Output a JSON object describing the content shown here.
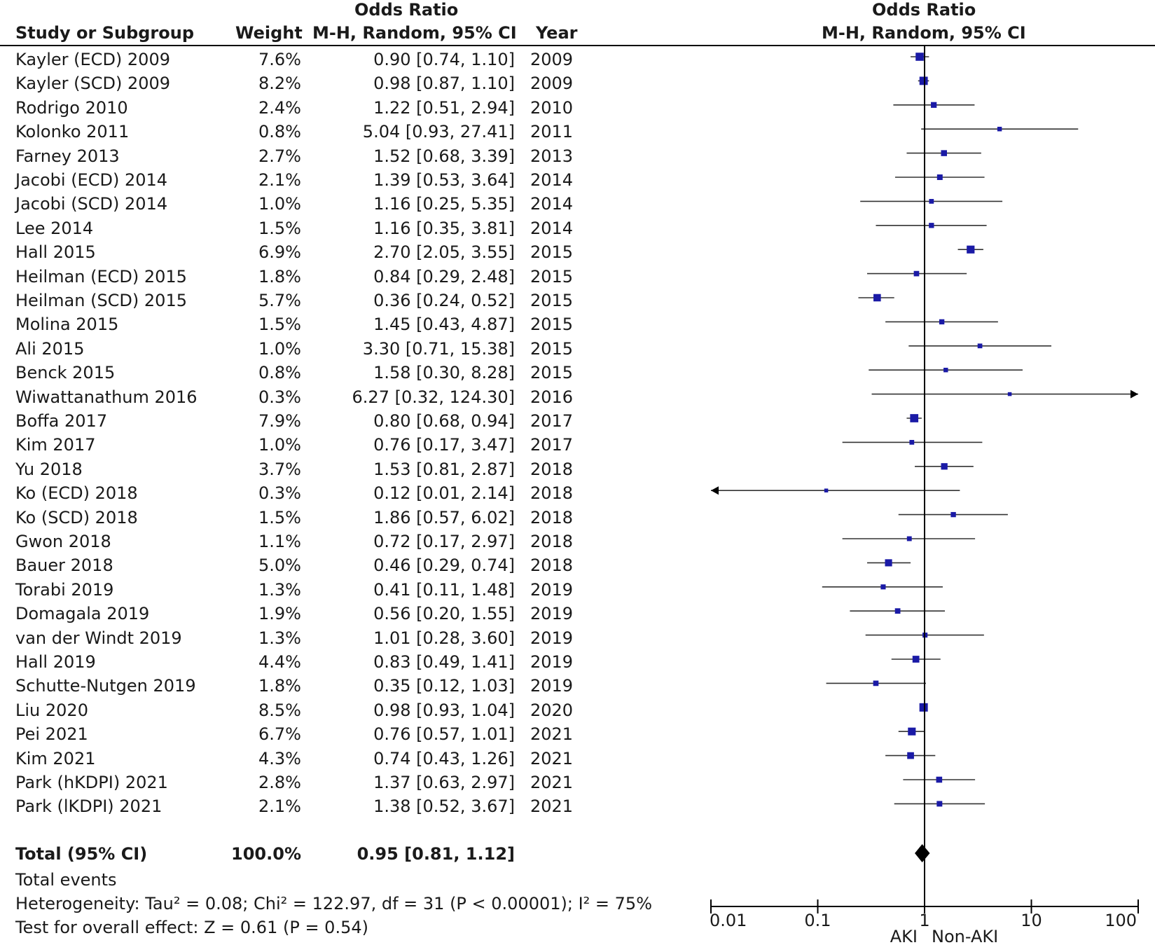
{
  "headers": {
    "study": "Study or Subgroup",
    "weight": "Weight",
    "or_top": "Odds Ratio",
    "or_method": "M-H, Random, 95% CI",
    "year": "Year",
    "plot_top": "Odds Ratio",
    "plot_method": "M-H, Random, 95% CI"
  },
  "total": {
    "label": "Total (95% CI)",
    "weight": "100.0%",
    "ci": "0.95 [0.81, 1.12]"
  },
  "footer": {
    "events": "Total events",
    "heterogeneity": "Heterogeneity: Tau² = 0.08; Chi² = 122.97, df = 31 (P < 0.00001); I² = 75%",
    "overall": "Test for overall effect: Z = 0.61 (P = 0.54)"
  },
  "axis": {
    "ticks": [
      "0.01",
      "0.1",
      "1",
      "10",
      "100"
    ],
    "left_label": "AKI",
    "right_label": "Non-AKI"
  },
  "chart_data": {
    "type": "forest",
    "scale": "log",
    "xlim": [
      0.01,
      100
    ],
    "reference_line": 1,
    "studies": [
      {
        "study": "Kayler (ECD) 2009",
        "weight": "7.6%",
        "ci_text": "0.90 [0.74, 1.10]",
        "year": "2009",
        "or": 0.9,
        "lo": 0.74,
        "hi": 1.1
      },
      {
        "study": "Kayler (SCD) 2009",
        "weight": "8.2%",
        "ci_text": "0.98 [0.87, 1.10]",
        "year": "2009",
        "or": 0.98,
        "lo": 0.87,
        "hi": 1.1
      },
      {
        "study": "Rodrigo 2010",
        "weight": "2.4%",
        "ci_text": "1.22 [0.51, 2.94]",
        "year": "2010",
        "or": 1.22,
        "lo": 0.51,
        "hi": 2.94
      },
      {
        "study": "Kolonko 2011",
        "weight": "0.8%",
        "ci_text": "5.04 [0.93, 27.41]",
        "year": "2011",
        "or": 5.04,
        "lo": 0.93,
        "hi": 27.41
      },
      {
        "study": "Farney 2013",
        "weight": "2.7%",
        "ci_text": "1.52 [0.68, 3.39]",
        "year": "2013",
        "or": 1.52,
        "lo": 0.68,
        "hi": 3.39
      },
      {
        "study": "Jacobi (ECD) 2014",
        "weight": "2.1%",
        "ci_text": "1.39 [0.53, 3.64]",
        "year": "2014",
        "or": 1.39,
        "lo": 0.53,
        "hi": 3.64
      },
      {
        "study": "Jacobi (SCD) 2014",
        "weight": "1.0%",
        "ci_text": "1.16 [0.25, 5.35]",
        "year": "2014",
        "or": 1.16,
        "lo": 0.25,
        "hi": 5.35
      },
      {
        "study": "Lee 2014",
        "weight": "1.5%",
        "ci_text": "1.16 [0.35, 3.81]",
        "year": "2014",
        "or": 1.16,
        "lo": 0.35,
        "hi": 3.81
      },
      {
        "study": "Hall 2015",
        "weight": "6.9%",
        "ci_text": "2.70 [2.05, 3.55]",
        "year": "2015",
        "or": 2.7,
        "lo": 2.05,
        "hi": 3.55
      },
      {
        "study": "Heilman (ECD) 2015",
        "weight": "1.8%",
        "ci_text": "0.84 [0.29, 2.48]",
        "year": "2015",
        "or": 0.84,
        "lo": 0.29,
        "hi": 2.48
      },
      {
        "study": "Heilman (SCD) 2015",
        "weight": "5.7%",
        "ci_text": "0.36 [0.24, 0.52]",
        "year": "2015",
        "or": 0.36,
        "lo": 0.24,
        "hi": 0.52
      },
      {
        "study": "Molina 2015",
        "weight": "1.5%",
        "ci_text": "1.45 [0.43, 4.87]",
        "year": "2015",
        "or": 1.45,
        "lo": 0.43,
        "hi": 4.87
      },
      {
        "study": "Ali 2015",
        "weight": "1.0%",
        "ci_text": "3.30 [0.71, 15.38]",
        "year": "2015",
        "or": 3.3,
        "lo": 0.71,
        "hi": 15.38
      },
      {
        "study": "Benck 2015",
        "weight": "0.8%",
        "ci_text": "1.58 [0.30, 8.28]",
        "year": "2015",
        "or": 1.58,
        "lo": 0.3,
        "hi": 8.28
      },
      {
        "study": "Wiwattanathum 2016",
        "weight": "0.3%",
        "ci_text": "6.27 [0.32, 124.30]",
        "year": "2016",
        "or": 6.27,
        "lo": 0.32,
        "hi": 124.3
      },
      {
        "study": "Boffa 2017",
        "weight": "7.9%",
        "ci_text": "0.80 [0.68, 0.94]",
        "year": "2017",
        "or": 0.8,
        "lo": 0.68,
        "hi": 0.94
      },
      {
        "study": "Kim 2017",
        "weight": "1.0%",
        "ci_text": "0.76 [0.17, 3.47]",
        "year": "2017",
        "or": 0.76,
        "lo": 0.17,
        "hi": 3.47
      },
      {
        "study": "Yu 2018",
        "weight": "3.7%",
        "ci_text": "1.53 [0.81, 2.87]",
        "year": "2018",
        "or": 1.53,
        "lo": 0.81,
        "hi": 2.87
      },
      {
        "study": "Ko (ECD) 2018",
        "weight": "0.3%",
        "ci_text": "0.12 [0.01, 2.14]",
        "year": "2018",
        "or": 0.12,
        "lo": 0.01,
        "hi": 2.14
      },
      {
        "study": "Ko (SCD) 2018",
        "weight": "1.5%",
        "ci_text": "1.86 [0.57, 6.02]",
        "year": "2018",
        "or": 1.86,
        "lo": 0.57,
        "hi": 6.02
      },
      {
        "study": "Gwon 2018",
        "weight": "1.1%",
        "ci_text": "0.72 [0.17, 2.97]",
        "year": "2018",
        "or": 0.72,
        "lo": 0.17,
        "hi": 2.97
      },
      {
        "study": "Bauer 2018",
        "weight": "5.0%",
        "ci_text": "0.46 [0.29, 0.74]",
        "year": "2018",
        "or": 0.46,
        "lo": 0.29,
        "hi": 0.74
      },
      {
        "study": "Torabi 2019",
        "weight": "1.3%",
        "ci_text": "0.41 [0.11, 1.48]",
        "year": "2019",
        "or": 0.41,
        "lo": 0.11,
        "hi": 1.48
      },
      {
        "study": "Domagala 2019",
        "weight": "1.9%",
        "ci_text": "0.56 [0.20, 1.55]",
        "year": "2019",
        "or": 0.56,
        "lo": 0.2,
        "hi": 1.55
      },
      {
        "study": "van der Windt 2019",
        "weight": "1.3%",
        "ci_text": "1.01 [0.28, 3.60]",
        "year": "2019",
        "or": 1.01,
        "lo": 0.28,
        "hi": 3.6
      },
      {
        "study": "Hall 2019",
        "weight": "4.4%",
        "ci_text": "0.83 [0.49, 1.41]",
        "year": "2019",
        "or": 0.83,
        "lo": 0.49,
        "hi": 1.41
      },
      {
        "study": "Schutte-Nutgen 2019",
        "weight": "1.8%",
        "ci_text": "0.35 [0.12, 1.03]",
        "year": "2019",
        "or": 0.35,
        "lo": 0.12,
        "hi": 1.03
      },
      {
        "study": "Liu 2020",
        "weight": "8.5%",
        "ci_text": "0.98 [0.93, 1.04]",
        "year": "2020",
        "or": 0.98,
        "lo": 0.93,
        "hi": 1.04
      },
      {
        "study": "Pei 2021",
        "weight": "6.7%",
        "ci_text": "0.76 [0.57, 1.01]",
        "year": "2021",
        "or": 0.76,
        "lo": 0.57,
        "hi": 1.01
      },
      {
        "study": "Kim 2021",
        "weight": "4.3%",
        "ci_text": "0.74 [0.43, 1.26]",
        "year": "2021",
        "or": 0.74,
        "lo": 0.43,
        "hi": 1.26
      },
      {
        "study": "Park (hKDPI) 2021",
        "weight": "2.8%",
        "ci_text": "1.37 [0.63, 2.97]",
        "year": "2021",
        "or": 1.37,
        "lo": 0.63,
        "hi": 2.97
      },
      {
        "study": "Park (lKDPI) 2021",
        "weight": "2.1%",
        "ci_text": "1.38 [0.52, 3.67]",
        "year": "2021",
        "or": 1.38,
        "lo": 0.52,
        "hi": 3.67
      }
    ],
    "pooled": {
      "or": 0.95,
      "lo": 0.81,
      "hi": 1.12
    },
    "colors": {
      "marker": "#1a1aa6",
      "line": "#333333",
      "diamond": "#000000"
    }
  }
}
